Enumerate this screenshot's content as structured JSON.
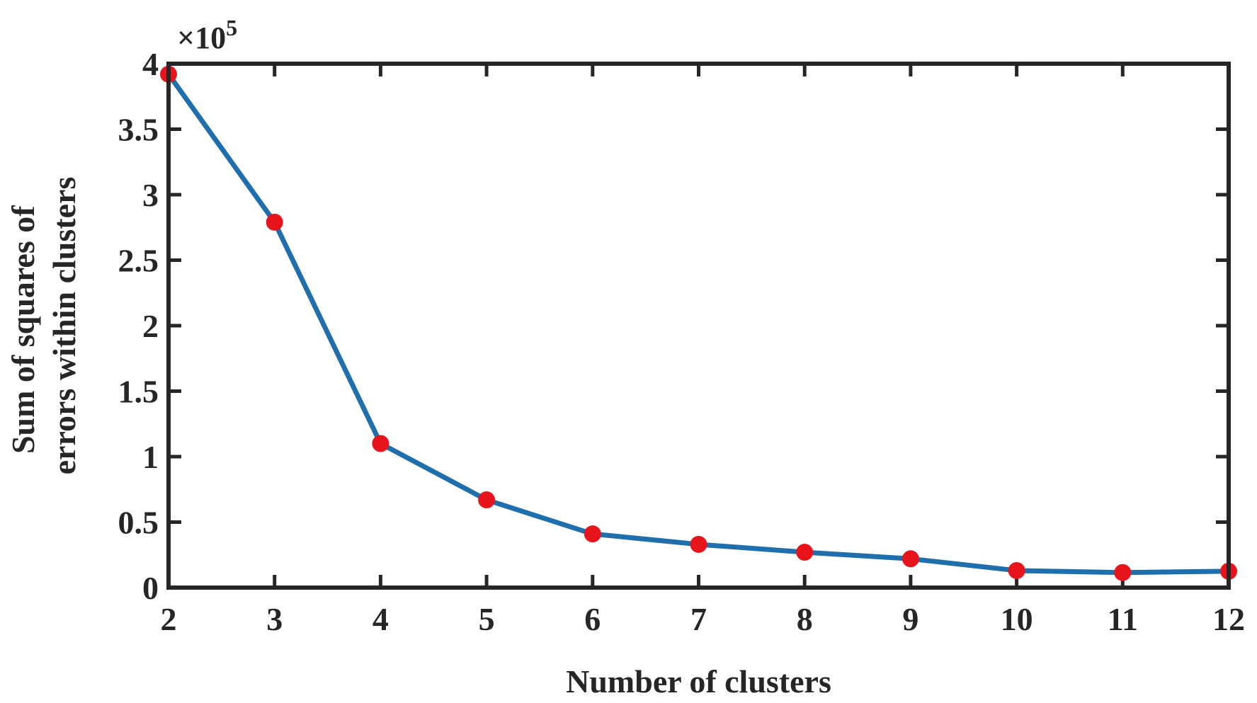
{
  "chart_data": {
    "type": "line",
    "title": "",
    "xlabel": "Number of clusters",
    "ylabel_lines": [
      "Sum of squares of",
      "errors within clusters"
    ],
    "y_multiplier": "×10",
    "y_multiplier_exponent": "5",
    "xlim": [
      2,
      12
    ],
    "ylim": [
      0,
      4
    ],
    "xticks": [
      2,
      3,
      4,
      5,
      6,
      7,
      8,
      9,
      10,
      11,
      12
    ],
    "yticks": [
      0,
      0.5,
      1,
      1.5,
      2,
      2.5,
      3,
      3.5,
      4
    ],
    "ytick_labels": [
      "0",
      "0.5",
      "1",
      "1.5",
      "2",
      "2.5",
      "3",
      "3.5",
      "4"
    ],
    "grid": false,
    "line_color": "#1f6fad",
    "marker_color": "#e8141b",
    "series": [
      {
        "x": [
          2,
          3,
          4,
          5,
          6,
          7,
          8,
          9,
          10,
          11,
          12
        ],
        "y": [
          3.92,
          2.79,
          1.1,
          0.67,
          0.41,
          0.33,
          0.27,
          0.22,
          0.13,
          0.115,
          0.125
        ]
      }
    ]
  }
}
